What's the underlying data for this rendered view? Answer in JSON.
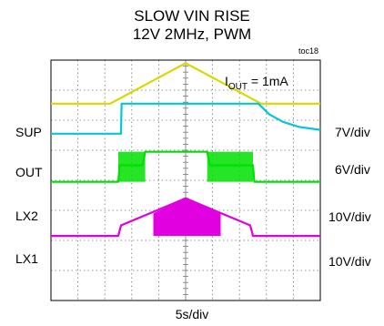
{
  "title_line1": "SLOW VIN RISE",
  "title_line2": "12V 2MHz, PWM",
  "figure_id": "toc18",
  "annotation": {
    "main": "I",
    "sub": "OUT",
    "rest": " = 1mA"
  },
  "x_scale": "5s/div",
  "chart_data": {
    "type": "line",
    "title": "SLOW VIN RISE",
    "subtitle": "12V 2MHz, PWM",
    "annotation": "IOUT = 1mA",
    "xlabel": "5s/div",
    "x_unit": "div",
    "xlim": [
      0,
      10
    ],
    "ylim": [
      0,
      8
    ],
    "grid": true,
    "series": [
      {
        "name": "SUP",
        "scale": "7V/div",
        "color": "#d8d800",
        "x": [
          0,
          2.2,
          5.0,
          7.8,
          10
        ],
        "y": [
          6.55,
          6.55,
          7.9,
          6.55,
          6.55
        ]
      },
      {
        "name": "OUT",
        "scale": "6V/div",
        "color": "#00c8d8",
        "x": [
          0,
          2.6,
          2.62,
          7.7,
          8.1,
          8.6,
          9.2,
          10
        ],
        "y": [
          5.55,
          5.55,
          6.55,
          6.55,
          6.2,
          5.95,
          5.78,
          5.68
        ]
      },
      {
        "name": "LX2",
        "scale": "10V/div",
        "color": "#00e000",
        "x": [
          0,
          2.5,
          2.55,
          3.4,
          3.5,
          5.8,
          5.9,
          7.5,
          7.55,
          10
        ],
        "y": [
          3.95,
          3.95,
          4.5,
          4.5,
          4.95,
          4.95,
          4.5,
          4.5,
          3.95,
          3.95
        ]
      },
      {
        "name": "LX1",
        "scale": "10V/div",
        "color": "#e000e0",
        "x": [
          0,
          2.5,
          2.6,
          5.0,
          7.4,
          7.5,
          10
        ],
        "y": [
          2.15,
          2.15,
          2.5,
          3.4,
          2.5,
          2.15,
          2.15
        ]
      }
    ]
  }
}
